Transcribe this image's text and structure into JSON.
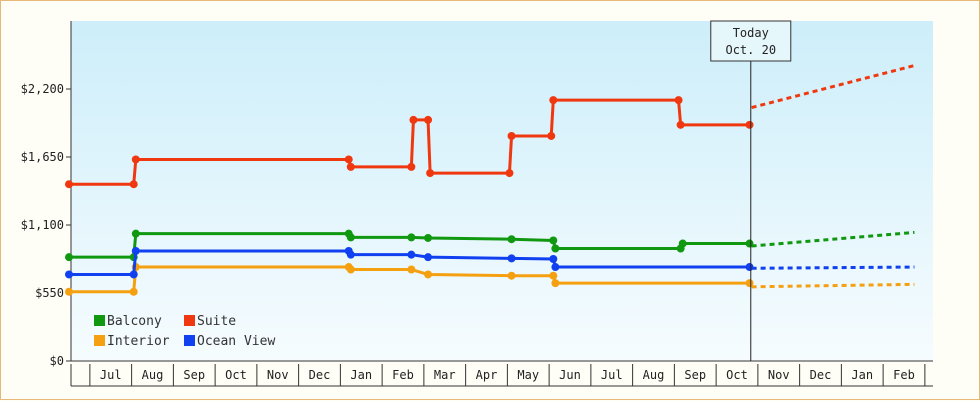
{
  "chart_data": {
    "type": "line",
    "x_unit": "months since start (mid-Jun = 0)",
    "ylim": [
      0,
      2750
    ],
    "y_ticks": [
      0,
      550,
      1100,
      1650,
      2200
    ],
    "y_tick_labels": [
      "$0",
      "$550",
      "$1,100",
      "$1,650",
      "$2,200"
    ],
    "x_tick_labels": [
      "Jul",
      "Aug",
      "Sep",
      "Oct",
      "Nov",
      "Dec",
      "Jan",
      "Feb",
      "Mar",
      "Apr",
      "May",
      "Jun",
      "Jul",
      "Aug",
      "Sep",
      "Oct",
      "Nov",
      "Dec",
      "Jan",
      "Feb"
    ],
    "grid": false,
    "legend_position": "bottom-left",
    "annotation": {
      "line1": "Today",
      "line2": "Oct. 20",
      "x": 16.33
    },
    "series": [
      {
        "name": "Balcony",
        "color": "#109810",
        "points": [
          [
            0,
            840
          ],
          [
            1.55,
            840
          ],
          [
            1.6,
            1030
          ],
          [
            6.7,
            1030
          ],
          [
            6.75,
            1000
          ],
          [
            8.2,
            1000
          ],
          [
            8.6,
            995
          ],
          [
            10.6,
            985
          ],
          [
            11.6,
            975
          ],
          [
            11.65,
            910
          ],
          [
            14.65,
            910
          ],
          [
            14.7,
            950
          ],
          [
            16.3,
            950
          ]
        ],
        "forecast": [
          [
            16.35,
            930
          ],
          [
            20.25,
            1040
          ]
        ]
      },
      {
        "name": "Suite",
        "color": "#f03810",
        "points": [
          [
            0,
            1430
          ],
          [
            1.55,
            1430
          ],
          [
            1.6,
            1630
          ],
          [
            6.7,
            1630
          ],
          [
            6.75,
            1570
          ],
          [
            8.2,
            1570
          ],
          [
            8.25,
            1950
          ],
          [
            8.6,
            1950
          ],
          [
            8.65,
            1520
          ],
          [
            10.55,
            1520
          ],
          [
            10.6,
            1820
          ],
          [
            11.55,
            1820
          ],
          [
            11.6,
            2110
          ],
          [
            14.6,
            2110
          ],
          [
            14.65,
            1910
          ],
          [
            16.3,
            1910
          ]
        ],
        "forecast": [
          [
            16.35,
            2050
          ],
          [
            20.25,
            2390
          ]
        ]
      },
      {
        "name": "Interior",
        "color": "#f5a010",
        "points": [
          [
            0,
            560
          ],
          [
            1.55,
            560
          ],
          [
            1.6,
            760
          ],
          [
            6.7,
            760
          ],
          [
            6.75,
            740
          ],
          [
            8.2,
            740
          ],
          [
            8.6,
            700
          ],
          [
            10.6,
            690
          ],
          [
            11.6,
            690
          ],
          [
            11.65,
            630
          ],
          [
            14.65,
            630
          ],
          [
            16.3,
            630
          ]
        ],
        "forecast": [
          [
            16.35,
            600
          ],
          [
            20.25,
            620
          ]
        ]
      },
      {
        "name": "Ocean View",
        "color": "#1040f0",
        "points": [
          [
            0,
            700
          ],
          [
            1.55,
            700
          ],
          [
            1.6,
            890
          ],
          [
            6.7,
            890
          ],
          [
            6.75,
            860
          ],
          [
            8.2,
            860
          ],
          [
            8.6,
            840
          ],
          [
            10.6,
            830
          ],
          [
            11.6,
            825
          ],
          [
            11.65,
            760
          ],
          [
            14.65,
            760
          ],
          [
            16.3,
            760
          ]
        ],
        "forecast": [
          [
            16.35,
            750
          ],
          [
            20.25,
            760
          ]
        ]
      }
    ]
  }
}
